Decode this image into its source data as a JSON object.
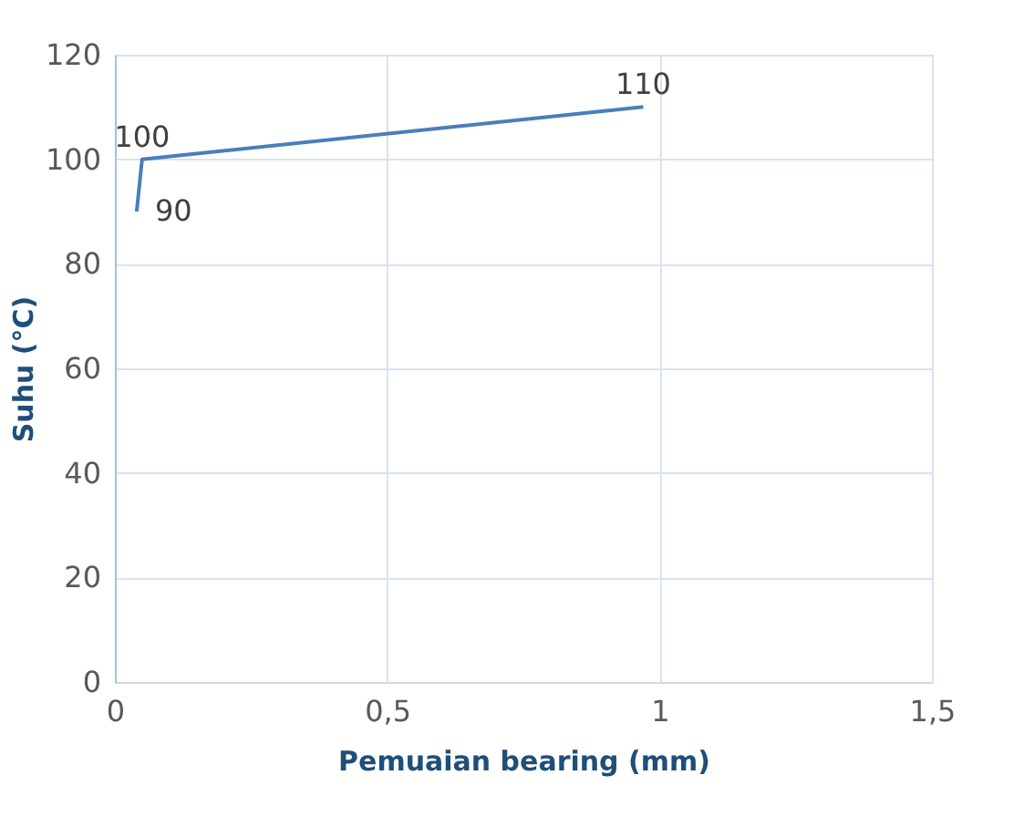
{
  "chart_data": {
    "type": "line",
    "xlabel": "Pemuaian bearing (mm)",
    "ylabel": "Suhu (°C)",
    "x": [
      0.04,
      0.05,
      0.97
    ],
    "values": [
      90,
      100,
      110
    ],
    "color": "#4a7ebb",
    "xlim": [
      0,
      1.5
    ],
    "ylim": [
      0,
      120
    ],
    "xticks": [
      {
        "value": 0,
        "label": "0"
      },
      {
        "value": 0.5,
        "label": "0,5"
      },
      {
        "value": 1,
        "label": "1"
      },
      {
        "value": 1.5,
        "label": "1,5"
      }
    ],
    "yticks": [
      0,
      20,
      40,
      60,
      80,
      100,
      120
    ],
    "grid": true,
    "data_labels": true,
    "marker": "none",
    "line_style": "solid"
  }
}
